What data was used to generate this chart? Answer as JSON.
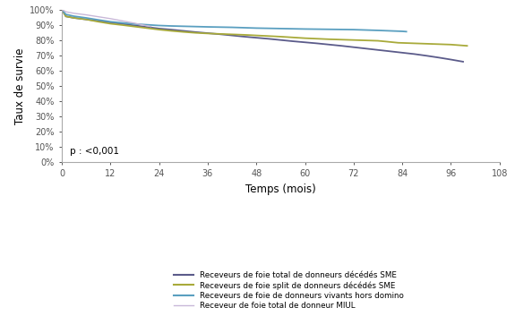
{
  "xlabel": "Temps (mois)",
  "ylabel": "Taux de survie",
  "xlim": [
    0,
    108
  ],
  "ylim": [
    0.0,
    1.0
  ],
  "xticks": [
    0,
    12,
    24,
    36,
    48,
    60,
    72,
    84,
    96,
    108
  ],
  "yticks": [
    0.0,
    0.1,
    0.2,
    0.3,
    0.4,
    0.5,
    0.6,
    0.7,
    0.8,
    0.9,
    1.0
  ],
  "ytick_labels": [
    "0%",
    "10%",
    "20%",
    "30%",
    "40%",
    "50%",
    "60%",
    "70%",
    "80%",
    "90%",
    "100%"
  ],
  "pvalue_text": "p : <0,001",
  "curve_sme_total": {
    "x": [
      0,
      1,
      3,
      6,
      9,
      12,
      15,
      18,
      21,
      24,
      27,
      30,
      33,
      36,
      39,
      42,
      45,
      48,
      51,
      54,
      57,
      60,
      63,
      66,
      69,
      72,
      75,
      78,
      81,
      84,
      87,
      90,
      93,
      96,
      99
    ],
    "y": [
      1.0,
      0.955,
      0.945,
      0.935,
      0.925,
      0.915,
      0.905,
      0.895,
      0.885,
      0.875,
      0.868,
      0.86,
      0.852,
      0.845,
      0.838,
      0.83,
      0.822,
      0.815,
      0.808,
      0.8,
      0.792,
      0.785,
      0.778,
      0.77,
      0.762,
      0.753,
      0.744,
      0.735,
      0.726,
      0.717,
      0.708,
      0.697,
      0.685,
      0.672,
      0.658
    ],
    "color": "#5b5b8a",
    "linewidth": 1.3,
    "label": "Receveurs de foie total de donneurs décédés SME"
  },
  "curve_sme_split": {
    "x": [
      0,
      1,
      3,
      6,
      9,
      12,
      15,
      18,
      21,
      24,
      27,
      30,
      33,
      36,
      39,
      42,
      45,
      48,
      54,
      60,
      66,
      72,
      78,
      80,
      83,
      96,
      100
    ],
    "y": [
      1.0,
      0.955,
      0.945,
      0.935,
      0.92,
      0.907,
      0.898,
      0.888,
      0.878,
      0.868,
      0.86,
      0.853,
      0.847,
      0.843,
      0.84,
      0.837,
      0.834,
      0.83,
      0.822,
      0.812,
      0.805,
      0.8,
      0.795,
      0.79,
      0.782,
      0.77,
      0.762
    ],
    "color": "#a8aa3a",
    "linewidth": 1.3,
    "label": "Receveurs de foie split de donneurs décédés SME"
  },
  "curve_vivants": {
    "x": [
      0,
      1,
      3,
      6,
      9,
      12,
      15,
      18,
      21,
      24,
      27,
      30,
      33,
      36,
      42,
      48,
      54,
      60,
      66,
      72,
      78,
      84,
      85
    ],
    "y": [
      1.0,
      0.968,
      0.956,
      0.945,
      0.932,
      0.92,
      0.912,
      0.905,
      0.9,
      0.895,
      0.892,
      0.89,
      0.888,
      0.886,
      0.883,
      0.878,
      0.875,
      0.872,
      0.87,
      0.868,
      0.863,
      0.857,
      0.855
    ],
    "color": "#5a9fc0",
    "linewidth": 1.3,
    "label": "Receveurs de foie de donneurs vivants hors domino"
  },
  "curve_miul": {
    "x": [
      0,
      1,
      3,
      6,
      12,
      18,
      21,
      22
    ],
    "y": [
      1.0,
      0.985,
      0.975,
      0.965,
      0.94,
      0.91,
      0.893,
      0.888
    ],
    "color": "#c8b8d8",
    "linewidth": 1.0,
    "label": "Receveur de foie total de donneur MIUL"
  },
  "background_color": "#ffffff"
}
